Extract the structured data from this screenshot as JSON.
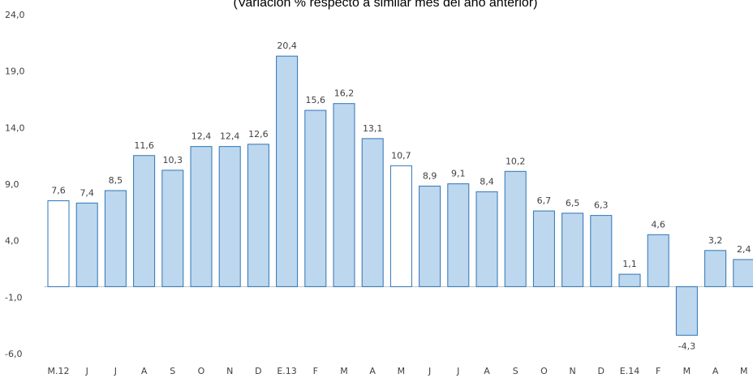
{
  "chart_data": {
    "type": "bar",
    "subtitle": "(Variación % respecto a similar mes del año anterior)",
    "categories": [
      "M.12",
      "J",
      "J",
      "A",
      "S",
      "O",
      "N",
      "D",
      "E.13",
      "F",
      "M",
      "A",
      "M",
      "J",
      "J",
      "A",
      "S",
      "O",
      "N",
      "D",
      "E.14",
      "F",
      "M",
      "A",
      "M"
    ],
    "values": [
      7.6,
      7.4,
      8.5,
      11.6,
      10.3,
      12.4,
      12.4,
      12.6,
      20.4,
      15.6,
      16.2,
      13.1,
      10.7,
      8.9,
      9.1,
      8.4,
      10.2,
      6.7,
      6.5,
      6.3,
      1.1,
      4.6,
      -4.3,
      3.2,
      2.4
    ],
    "value_labels": [
      "7,6",
      "7,4",
      "8,5",
      "11,6",
      "10,3",
      "12,4",
      "12,4",
      "12,6",
      "20,4",
      "15,6",
      "16,2",
      "13,1",
      "10,7",
      "8,9",
      "9,1",
      "8,4",
      "10,2",
      "6,7",
      "6,5",
      "6,3",
      "1,1",
      "4,6",
      "-4,3",
      "3,2",
      "2,4"
    ],
    "colors": [
      "#ffffff",
      "#bdd7ee",
      "#bdd7ee",
      "#bdd7ee",
      "#bdd7ee",
      "#bdd7ee",
      "#bdd7ee",
      "#bdd7ee",
      "#bdd7ee",
      "#bdd7ee",
      "#bdd7ee",
      "#bdd7ee",
      "#ffffff",
      "#bdd7ee",
      "#bdd7ee",
      "#bdd7ee",
      "#bdd7ee",
      "#bdd7ee",
      "#bdd7ee",
      "#bdd7ee",
      "#bdd7ee",
      "#bdd7ee",
      "#bdd7ee",
      "#bdd7ee",
      "#bdd7ee"
    ],
    "edge_color": "#2e75b6",
    "ylim": [
      -6,
      24
    ],
    "yticks": [
      {
        "value": -6,
        "label": "-6,0"
      },
      {
        "value": -1,
        "label": "-1,0"
      },
      {
        "value": 4,
        "label": "4,0"
      },
      {
        "value": 9,
        "label": "9,0"
      },
      {
        "value": 14,
        "label": "14,0"
      },
      {
        "value": 19,
        "label": "19,0"
      },
      {
        "value": 24,
        "label": "24,0"
      }
    ],
    "grid": false
  }
}
